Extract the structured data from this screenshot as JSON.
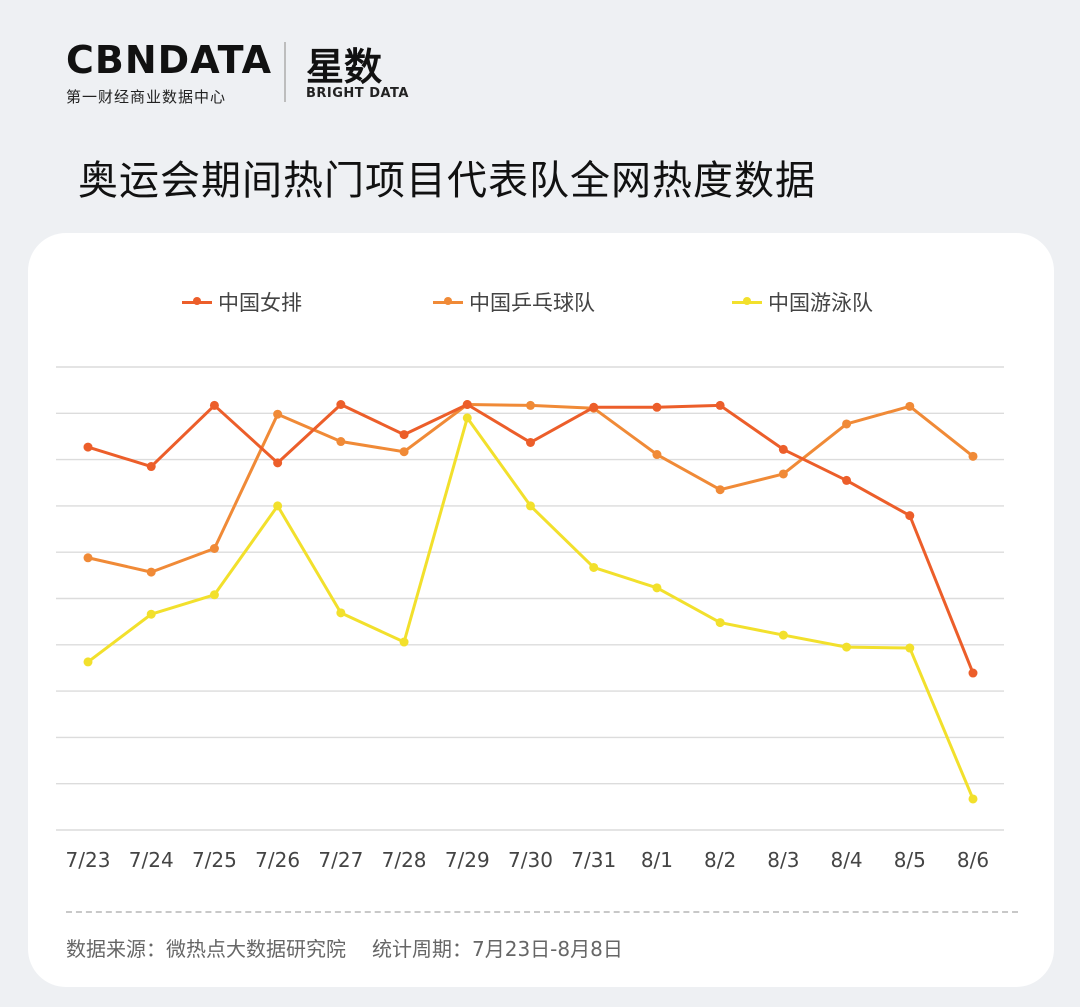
{
  "brand": {
    "name_en": "CBNDATA",
    "tagline_en": "第一财经商业数据中心",
    "name_cn": "星数",
    "tagline_cn": "BRIGHT DATA"
  },
  "title": "奥运会期间热门项目代表队全网热度数据",
  "footer": {
    "source": "数据来源：微热点大数据研究院",
    "period": "统计周期：7月23日-8月8日"
  },
  "chart_data": {
    "type": "line",
    "title": "奥运会期间热门项目代表队全网热度数据",
    "xlabel": "",
    "ylabel": "",
    "grid": true,
    "legend_position": "top",
    "categories": [
      "7/23",
      "7/24",
      "7/25",
      "7/26",
      "7/27",
      "7/28",
      "7/29",
      "7/30",
      "7/31",
      "8/1",
      "8/2",
      "8/3",
      "8/4",
      "8/5",
      "8/6"
    ],
    "ylim": [
      0,
      100
    ],
    "series": [
      {
        "name": "中国女排",
        "color": "#ec5e2a",
        "values": [
          82.7,
          78.5,
          91.7,
          79.3,
          91.9,
          85.4,
          91.9,
          83.7,
          91.3,
          91.3,
          91.7,
          82.2,
          75.5,
          67.9,
          33.9
        ]
      },
      {
        "name": "中国乒乓球队",
        "color": "#f08a37",
        "values": [
          58.8,
          55.7,
          60.8,
          89.8,
          83.9,
          81.7,
          91.9,
          91.7,
          91.1,
          81.1,
          73.5,
          76.9,
          87.7,
          91.5,
          80.7
        ]
      },
      {
        "name": "中国游泳队",
        "color": "#f2e02c",
        "values": [
          36.3,
          46.6,
          50.8,
          70.0,
          46.9,
          40.6,
          89.0,
          70.0,
          56.7,
          52.3,
          44.8,
          42.1,
          39.5,
          39.3,
          6.7
        ]
      }
    ]
  }
}
